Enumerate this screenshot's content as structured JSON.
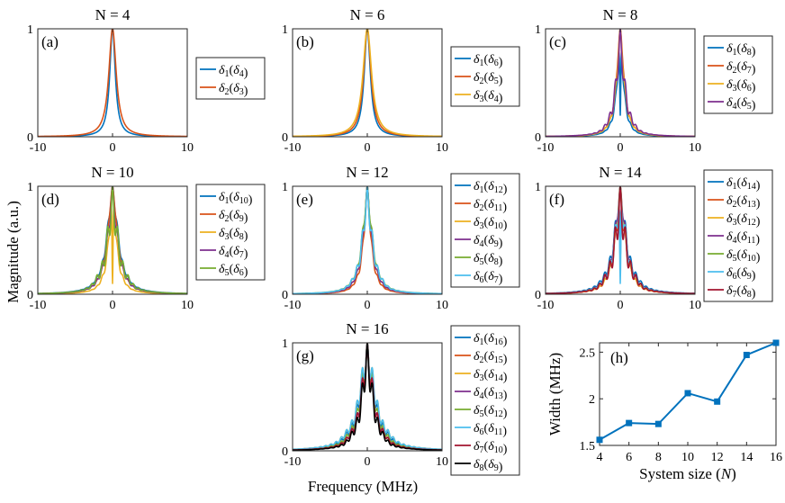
{
  "figure": {
    "ylabel": "Magnitude (a.u.)",
    "xlabel": "Frequency (MHz)"
  },
  "chart_data": [
    {
      "panel": "(a)",
      "type": "line",
      "title": "N = 4",
      "N": 4,
      "xlim": [
        -10,
        10
      ],
      "ylim": [
        0,
        1
      ],
      "xticks": [
        "-10",
        "0",
        "10"
      ],
      "yticks": [
        "0",
        "1"
      ],
      "series": [
        {
          "name": "δ1(δ4)",
          "base": "δ",
          "sub": "1",
          "paren": "δ",
          "psub": "4",
          "color": "#0072BD",
          "width": 0.45,
          "osc": 0.0,
          "dip": 0.0
        },
        {
          "name": "δ2(δ3)",
          "base": "δ",
          "sub": "2",
          "paren": "δ",
          "psub": "3",
          "color": "#D95319",
          "width": 0.6,
          "osc": 0.0,
          "dip": 0.0
        }
      ]
    },
    {
      "panel": "(b)",
      "type": "line",
      "title": "N = 6",
      "N": 6,
      "xlim": [
        -10,
        10
      ],
      "ylim": [
        0,
        1
      ],
      "xticks": [
        "-10",
        "0",
        "10"
      ],
      "yticks": [
        "0",
        "1"
      ],
      "series": [
        {
          "name": "δ1(δ6)",
          "base": "δ",
          "sub": "1",
          "paren": "δ",
          "psub": "6",
          "color": "#0072BD",
          "width": 0.5,
          "osc": 0.0,
          "dip": 0.0
        },
        {
          "name": "δ2(δ5)",
          "base": "δ",
          "sub": "2",
          "paren": "δ",
          "psub": "5",
          "color": "#D95319",
          "width": 0.6,
          "osc": 0.0,
          "dip": 0.0
        },
        {
          "name": "δ3(δ4)",
          "base": "δ",
          "sub": "3",
          "paren": "δ",
          "psub": "4",
          "color": "#EDB120",
          "width": 0.7,
          "osc": 0.0,
          "dip": 0.0
        }
      ]
    },
    {
      "panel": "(c)",
      "type": "line",
      "title": "N = 8",
      "N": 8,
      "xlim": [
        -10,
        10
      ],
      "ylim": [
        0,
        1
      ],
      "xticks": [
        "-10",
        "0",
        "10"
      ],
      "yticks": [
        "0",
        "1"
      ],
      "series": [
        {
          "name": "δ1(δ8)",
          "base": "δ",
          "sub": "1",
          "paren": "δ",
          "psub": "8",
          "color": "#0072BD",
          "width": 0.5,
          "osc": 0.2,
          "dip": 0.8
        },
        {
          "name": "δ2(δ7)",
          "base": "δ",
          "sub": "2",
          "paren": "δ",
          "psub": "7",
          "color": "#D95319",
          "width": 0.6,
          "osc": 0.1,
          "dip": 0.0
        },
        {
          "name": "δ3(δ6)",
          "base": "δ",
          "sub": "3",
          "paren": "δ",
          "psub": "6",
          "color": "#EDB120",
          "width": 0.6,
          "osc": 0.2,
          "dip": 0.0
        },
        {
          "name": "δ4(δ5)",
          "base": "δ",
          "sub": "4",
          "paren": "δ",
          "psub": "5",
          "color": "#7E2F8E",
          "width": 0.7,
          "osc": 0.35,
          "dip": 0.0
        }
      ]
    },
    {
      "panel": "(d)",
      "type": "line",
      "title": "N = 10",
      "N": 10,
      "xlim": [
        -10,
        10
      ],
      "ylim": [
        0,
        1
      ],
      "xticks": [
        "-10",
        "0",
        "10"
      ],
      "yticks": [
        "0",
        "1"
      ],
      "series": [
        {
          "name": "δ1(δ10)",
          "base": "δ",
          "sub": "1",
          "paren": "δ",
          "psub": "10",
          "color": "#0072BD",
          "width": 0.9,
          "osc": 0.15,
          "dip": 0.0
        },
        {
          "name": "δ2(δ9)",
          "base": "δ",
          "sub": "2",
          "paren": "δ",
          "psub": "9",
          "color": "#D95319",
          "width": 0.8,
          "osc": 0.1,
          "dip": 0.0
        },
        {
          "name": "δ3(δ8)",
          "base": "δ",
          "sub": "3",
          "paren": "δ",
          "psub": "8",
          "color": "#EDB120",
          "width": 0.6,
          "osc": 0.2,
          "dip": 0.9
        },
        {
          "name": "δ4(δ7)",
          "base": "δ",
          "sub": "4",
          "paren": "δ",
          "psub": "7",
          "color": "#7E2F8E",
          "width": 0.8,
          "osc": 0.25,
          "dip": 0.0
        },
        {
          "name": "δ5(δ6)",
          "base": "δ",
          "sub": "5",
          "paren": "δ",
          "psub": "6",
          "color": "#77AC30",
          "width": 0.9,
          "osc": 0.4,
          "dip": 0.0
        }
      ]
    },
    {
      "panel": "(e)",
      "type": "line",
      "title": "N = 12",
      "N": 12,
      "xlim": [
        -10,
        10
      ],
      "ylim": [
        0,
        1
      ],
      "xticks": [
        "-10",
        "0",
        "10"
      ],
      "yticks": [
        "0",
        "1"
      ],
      "series": [
        {
          "name": "δ1(δ12)",
          "base": "δ",
          "sub": "1",
          "paren": "δ",
          "psub": "12",
          "color": "#0072BD",
          "width": 0.7,
          "osc": 0.2,
          "dip": 0.0
        },
        {
          "name": "δ2(δ11)",
          "base": "δ",
          "sub": "2",
          "paren": "δ",
          "psub": "11",
          "color": "#D95319",
          "width": 0.6,
          "osc": 0.2,
          "dip": 0.0
        },
        {
          "name": "δ3(δ10)",
          "base": "δ",
          "sub": "3",
          "paren": "δ",
          "psub": "10",
          "color": "#EDB120",
          "width": 0.7,
          "osc": 0.2,
          "dip": 0.0
        },
        {
          "name": "δ4(δ9)",
          "base": "δ",
          "sub": "4",
          "paren": "δ",
          "psub": "9",
          "color": "#7E2F8E",
          "width": 0.7,
          "osc": 0.2,
          "dip": 0.0
        },
        {
          "name": "δ5(δ8)",
          "base": "δ",
          "sub": "5",
          "paren": "δ",
          "psub": "8",
          "color": "#77AC30",
          "width": 0.8,
          "osc": 0.2,
          "dip": 0.0
        },
        {
          "name": "δ6(δ7)",
          "base": "δ",
          "sub": "6",
          "paren": "δ",
          "psub": "7",
          "color": "#4DBEEE",
          "width": 0.8,
          "osc": 0.3,
          "dip": 0.0
        }
      ]
    },
    {
      "panel": "(f)",
      "type": "line",
      "title": "N = 14",
      "N": 14,
      "xlim": [
        -10,
        10
      ],
      "ylim": [
        0,
        1
      ],
      "xticks": [
        "-10",
        "0",
        "10"
      ],
      "yticks": [
        "0",
        "1"
      ],
      "series": [
        {
          "name": "δ1(δ14)",
          "base": "δ",
          "sub": "1",
          "paren": "δ",
          "psub": "14",
          "color": "#0072BD",
          "width": 1.0,
          "osc": 0.3,
          "dip": 0.7
        },
        {
          "name": "δ2(δ13)",
          "base": "δ",
          "sub": "2",
          "paren": "δ",
          "psub": "13",
          "color": "#D95319",
          "width": 0.8,
          "osc": 0.3,
          "dip": 0.0
        },
        {
          "name": "δ3(δ12)",
          "base": "δ",
          "sub": "3",
          "paren": "δ",
          "psub": "12",
          "color": "#EDB120",
          "width": 0.8,
          "osc": 0.2,
          "dip": 0.0
        },
        {
          "name": "δ4(δ11)",
          "base": "δ",
          "sub": "4",
          "paren": "δ",
          "psub": "11",
          "color": "#7E2F8E",
          "width": 0.9,
          "osc": 0.2,
          "dip": 0.0
        },
        {
          "name": "δ5(δ10)",
          "base": "δ",
          "sub": "5",
          "paren": "δ",
          "psub": "10",
          "color": "#77AC30",
          "width": 0.9,
          "osc": 0.3,
          "dip": 0.0
        },
        {
          "name": "δ6(δ9)",
          "base": "δ",
          "sub": "6",
          "paren": "δ",
          "psub": "9",
          "color": "#4DBEEE",
          "width": 0.9,
          "osc": 0.3,
          "dip": 0.9
        },
        {
          "name": "δ7(δ8)",
          "base": "δ",
          "sub": "7",
          "paren": "δ",
          "psub": "8",
          "color": "#A2142F",
          "width": 0.9,
          "osc": 0.45,
          "dip": 0.0
        }
      ]
    },
    {
      "panel": "(g)",
      "type": "line",
      "title": "N = 16",
      "N": 16,
      "xlim": [
        -10,
        10
      ],
      "ylim": [
        0,
        1
      ],
      "xticks": [
        "-10",
        "0",
        "10"
      ],
      "yticks": [
        "0",
        "1"
      ],
      "series": [
        {
          "name": "δ1(δ16)",
          "base": "δ",
          "sub": "1",
          "paren": "δ",
          "psub": "16",
          "color": "#0072BD",
          "width": 1.2,
          "osc": 0.3,
          "dip": 0.0
        },
        {
          "name": "δ2(δ15)",
          "base": "δ",
          "sub": "2",
          "paren": "δ",
          "psub": "15",
          "color": "#D95319",
          "width": 1.0,
          "osc": 0.3,
          "dip": 0.0
        },
        {
          "name": "δ3(δ14)",
          "base": "δ",
          "sub": "3",
          "paren": "δ",
          "psub": "14",
          "color": "#EDB120",
          "width": 1.3,
          "osc": 0.3,
          "dip": 0.0
        },
        {
          "name": "δ4(δ13)",
          "base": "δ",
          "sub": "4",
          "paren": "δ",
          "psub": "13",
          "color": "#7E2F8E",
          "width": 1.0,
          "osc": 0.3,
          "dip": 0.0
        },
        {
          "name": "δ5(δ12)",
          "base": "δ",
          "sub": "5",
          "paren": "δ",
          "psub": "12",
          "color": "#77AC30",
          "width": 1.1,
          "osc": 0.3,
          "dip": 0.0
        },
        {
          "name": "δ6(δ11)",
          "base": "δ",
          "sub": "6",
          "paren": "δ",
          "psub": "11",
          "color": "#4DBEEE",
          "width": 1.3,
          "osc": 0.3,
          "dip": 0.0
        },
        {
          "name": "δ7(δ10)",
          "base": "δ",
          "sub": "7",
          "paren": "δ",
          "psub": "10",
          "color": "#A2142F",
          "width": 1.0,
          "osc": 0.35,
          "dip": 0.0
        },
        {
          "name": "δ8(δ9)",
          "base": "δ",
          "sub": "8",
          "paren": "δ",
          "psub": "9",
          "color": "#000000",
          "width": 0.9,
          "osc": 0.4,
          "dip": 0.0
        }
      ]
    },
    {
      "panel": "(h)",
      "type": "line",
      "xlabel_main": "System size (",
      "xlabel_var": "N",
      "xlabel_close": ")",
      "ylabel": "Width (MHz)",
      "xlim": [
        4,
        16
      ],
      "ylim": [
        1.5,
        2.6
      ],
      "xticks": [
        "4",
        "6",
        "8",
        "10",
        "12",
        "14",
        "16"
      ],
      "yticks": [
        "1.5",
        "2",
        "2.5"
      ],
      "color": "#0072BD",
      "x": [
        4,
        6,
        8,
        10,
        12,
        14,
        16
      ],
      "y": [
        1.56,
        1.74,
        1.73,
        2.06,
        1.97,
        2.47,
        2.6
      ]
    }
  ]
}
